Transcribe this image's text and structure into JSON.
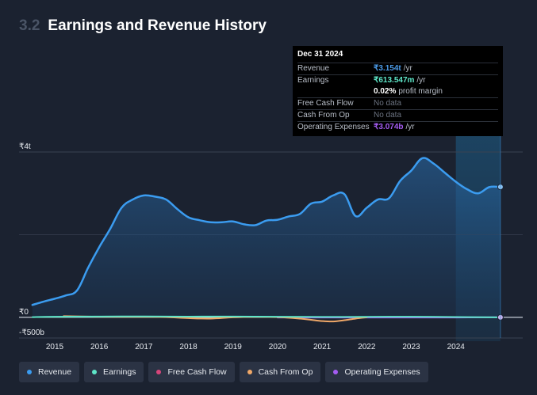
{
  "header": {
    "section_number": "3.2",
    "title": "Earnings and Revenue History"
  },
  "tooltip": {
    "date": "Dec 31 2024",
    "rows": [
      {
        "label": "Revenue",
        "value": "₹3.154t",
        "unit": "/yr",
        "color": "#4c9be8"
      },
      {
        "label": "Earnings",
        "value": "₹613.547m",
        "unit": "/yr",
        "color": "#5ee6c8"
      },
      {
        "label": "",
        "value": "0.02%",
        "unit": "profit margin",
        "color": "#ffffff"
      },
      {
        "label": "Free Cash Flow",
        "nodata": "No data"
      },
      {
        "label": "Cash From Op",
        "nodata": "No data"
      },
      {
        "label": "Operating Expenses",
        "value": "₹3.074b",
        "unit": "/yr",
        "color": "#a45cf2"
      }
    ]
  },
  "legend": [
    {
      "label": "Revenue",
      "color": "#3b9cf0"
    },
    {
      "label": "Earnings",
      "color": "#5ee6c8"
    },
    {
      "label": "Free Cash Flow",
      "color": "#d6457a"
    },
    {
      "label": "Cash From Op",
      "color": "#f0a868"
    },
    {
      "label": "Operating Expenses",
      "color": "#a45cf2"
    }
  ],
  "chart_data": {
    "type": "area",
    "title": "Earnings and Revenue History",
    "y_tick_labels": [
      "₹4t",
      "₹0",
      "-₹500b"
    ],
    "y_ticks": [
      4000,
      0,
      -500
    ],
    "ylim": [
      -500,
      4000
    ],
    "y_unit": "₹ billions",
    "x_tick_labels": [
      "2015",
      "2016",
      "2017",
      "2018",
      "2019",
      "2020",
      "2021",
      "2022",
      "2023",
      "2024"
    ],
    "x_ticks": [
      2015,
      2016,
      2017,
      2018,
      2019,
      2020,
      2021,
      2022,
      2023,
      2024
    ],
    "xlim": [
      2014.2,
      2025.5
    ],
    "forecast_start": 2024.0,
    "series": [
      {
        "name": "Revenue",
        "color": "#3b9cf0",
        "x": [
          2014.5,
          2014.75,
          2015.0,
          2015.25,
          2015.5,
          2015.75,
          2016.0,
          2016.25,
          2016.5,
          2016.75,
          2017.0,
          2017.25,
          2017.5,
          2017.75,
          2018.0,
          2018.25,
          2018.5,
          2018.75,
          2019.0,
          2019.25,
          2019.5,
          2019.75,
          2020.0,
          2020.25,
          2020.5,
          2020.75,
          2021.0,
          2021.25,
          2021.5,
          2021.75,
          2022.0,
          2022.25,
          2022.5,
          2022.75,
          2023.0,
          2023.25,
          2023.5,
          2023.75,
          2024.0,
          2024.25,
          2024.5,
          2024.75,
          2025.0
        ],
        "y": [
          300,
          380,
          450,
          530,
          650,
          1200,
          1700,
          2150,
          2650,
          2850,
          2950,
          2920,
          2850,
          2620,
          2420,
          2350,
          2300,
          2300,
          2320,
          2250,
          2230,
          2340,
          2360,
          2440,
          2500,
          2750,
          2800,
          2950,
          2980,
          2450,
          2650,
          2850,
          2880,
          3300,
          3550,
          3850,
          3720,
          3500,
          3280,
          3100,
          3000,
          3150,
          3154
        ]
      },
      {
        "name": "Earnings",
        "color": "#5ee6c8",
        "x": [
          2014.5,
          2015.0,
          2016.0,
          2017.0,
          2018.0,
          2019.0,
          2020.0,
          2021.0,
          2022.0,
          2023.0,
          2024.0,
          2025.0
        ],
        "y": [
          5,
          15,
          20,
          22,
          18,
          20,
          15,
          10,
          12,
          15,
          8,
          0.6
        ]
      },
      {
        "name": "Cash From Op",
        "color": "#f0a868",
        "x": [
          2015.2,
          2016.0,
          2017.0,
          2017.5,
          2018.0,
          2018.5,
          2019.0,
          2019.5,
          2020.0,
          2020.5,
          2020.75,
          2021.0,
          2021.25,
          2021.5,
          2021.75,
          2022.0
        ],
        "y": [
          30,
          15,
          10,
          5,
          -20,
          -30,
          0,
          10,
          5,
          -30,
          -60,
          -90,
          -100,
          -70,
          -30,
          0
        ]
      },
      {
        "name": "Operating Expenses",
        "color": "#a45cf2",
        "x": [
          2020.0,
          2021.0,
          2022.0,
          2023.0,
          2024.0,
          2025.0
        ],
        "y": [
          -5,
          -5,
          -5,
          -5,
          -5,
          3.074
        ]
      }
    ]
  }
}
